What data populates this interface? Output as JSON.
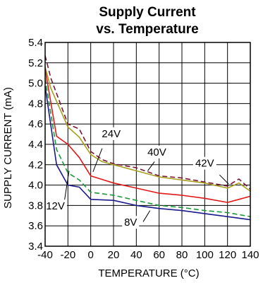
{
  "chart_data": {
    "type": "line",
    "title": "Supply Current",
    "subtitle": "vs. Temperature",
    "xlabel": "TEMPERATURE (°C)",
    "ylabel": "SUPPLY CURRENT (mA)",
    "xlim": [
      -40,
      140
    ],
    "ylim": [
      3.4,
      5.4
    ],
    "x_ticks": [
      -40,
      -20,
      0,
      20,
      40,
      60,
      80,
      100,
      120,
      140
    ],
    "x_tick_labels": [
      "-40",
      "-20",
      "0",
      "20",
      "40",
      "60",
      "80",
      "100",
      "120",
      "140"
    ],
    "y_ticks": [
      3.4,
      3.6,
      3.8,
      4.0,
      4.2,
      4.4,
      4.6,
      4.8,
      5.0,
      5.2,
      5.4
    ],
    "y_tick_labels": [
      "3.4",
      "3.6",
      "3.8",
      "4.0",
      "4.2",
      "4.4",
      "4.6",
      "4.8",
      "5.0",
      "5.2",
      "5.4"
    ],
    "grid": true,
    "legend": "none",
    "series": [
      {
        "name": "42V",
        "color": "#7a1535",
        "dash": "dashed",
        "x": [
          -40,
          -35,
          -20,
          -10,
          0,
          10,
          20,
          40,
          60,
          80,
          100,
          120,
          130,
          140
        ],
        "y": [
          5.27,
          5.05,
          4.6,
          4.55,
          4.33,
          4.25,
          4.21,
          4.17,
          4.09,
          4.07,
          4.03,
          3.99,
          4.06,
          3.96
        ],
        "label": {
          "text": "42V",
          "x": 100,
          "y": 4.18
        },
        "pointer": {
          "from": [
            113,
            4.1
          ],
          "to": [
            121,
            4.01
          ]
        }
      },
      {
        "name": "40V",
        "color": "#a8a020",
        "dash": "solid",
        "x": [
          -40,
          -35,
          -20,
          -10,
          0,
          10,
          20,
          40,
          60,
          80,
          100,
          120,
          130,
          140
        ],
        "y": [
          5.16,
          4.95,
          4.57,
          4.47,
          4.3,
          4.23,
          4.2,
          4.14,
          4.08,
          4.05,
          4.02,
          3.97,
          4.02,
          3.94
        ],
        "label": {
          "text": "40V",
          "x": 58,
          "y": 4.29
        },
        "pointer": {
          "from": [
            56,
            4.23
          ],
          "to": [
            50,
            4.14
          ]
        }
      },
      {
        "name": "24V",
        "color": "#e01818",
        "dash": "solid",
        "x": [
          -40,
          -30,
          -20,
          -10,
          0,
          20,
          40,
          60,
          80,
          100,
          120,
          130,
          140
        ],
        "y": [
          5.14,
          4.48,
          4.4,
          4.27,
          4.09,
          4.02,
          3.97,
          3.92,
          3.9,
          3.87,
          3.83,
          3.86,
          3.89
        ],
        "label": {
          "text": "24V",
          "x": 18,
          "y": 4.47
        },
        "pointer": {
          "from": [
            10,
            4.36
          ],
          "to": [
            2,
            4.13
          ]
        }
      },
      {
        "name": "12V",
        "color": "#1a9a3a",
        "dash": "dashed",
        "x": [
          -40,
          -30,
          -20,
          -10,
          0,
          20,
          40,
          60,
          80,
          100,
          120,
          140
        ],
        "y": [
          5.05,
          4.35,
          4.12,
          4.05,
          3.93,
          3.9,
          3.85,
          3.8,
          3.78,
          3.75,
          3.73,
          3.69
        ],
        "label": {
          "text": "12V",
          "x": -31,
          "y": 3.76
        },
        "pointer": {
          "from": [
            -23,
            3.85
          ],
          "to": [
            -19,
            4.14
          ]
        }
      },
      {
        "name": "8V",
        "color": "#1a1a8a",
        "dash": "solid",
        "x": [
          -40,
          -30,
          -20,
          -10,
          0,
          20,
          40,
          60,
          80,
          100,
          120,
          140
        ],
        "y": [
          4.97,
          4.2,
          4.0,
          3.98,
          3.86,
          3.85,
          3.8,
          3.77,
          3.75,
          3.72,
          3.69,
          3.66
        ],
        "label": {
          "text": "8V",
          "x": 35,
          "y": 3.6
        },
        "pointer": {
          "from": [
            46,
            3.64
          ],
          "to": [
            52,
            3.75
          ]
        }
      }
    ]
  }
}
